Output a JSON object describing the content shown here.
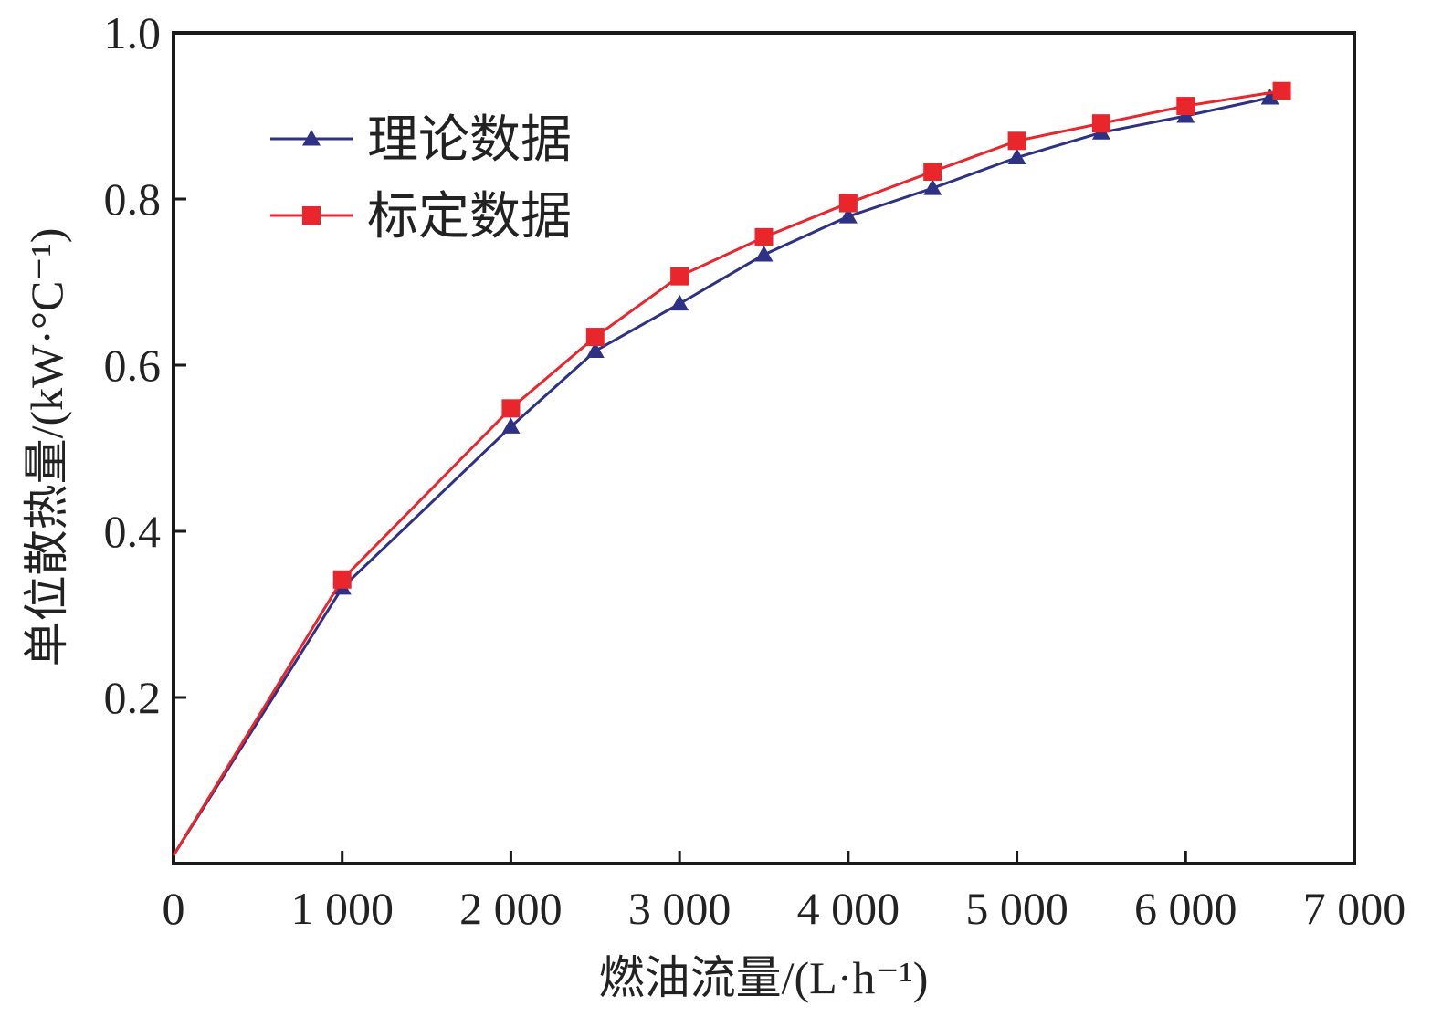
{
  "chart_data": {
    "type": "line",
    "title": "",
    "xlabel": "燃油流量/(L·h⁻¹)",
    "ylabel": "单位散热量/(kW·°C⁻¹)",
    "xlim": [
      0,
      7000
    ],
    "ylim": [
      0,
      1.0
    ],
    "x_ticks": [
      0,
      1000,
      2000,
      3000,
      4000,
      5000,
      6000,
      7000
    ],
    "x_tick_labels": [
      "0",
      "1 000",
      "2 000",
      "3 000",
      "4 000",
      "5 000",
      "6 000",
      "7 000"
    ],
    "y_ticks": [
      0.2,
      0.4,
      0.6,
      0.8,
      1.0
    ],
    "y_tick_labels": [
      "0.2",
      "0.4",
      "0.6",
      "0.8",
      "1.0"
    ],
    "grid": false,
    "legend_position": "top-left",
    "series": [
      {
        "name": "理论数据",
        "color": "#2e3184",
        "marker": "triangle",
        "x": [
          0,
          1000,
          2000,
          2500,
          3000,
          3500,
          4000,
          4500,
          5000,
          5500,
          6000,
          6500
        ],
        "y": [
          0.01,
          0.332,
          0.526,
          0.617,
          0.674,
          0.733,
          0.779,
          0.813,
          0.85,
          0.88,
          0.9,
          0.922
        ]
      },
      {
        "name": "标定数据",
        "color": "#e8262b",
        "marker": "square",
        "x": [
          0,
          1000,
          2000,
          2500,
          3000,
          3500,
          4000,
          4500,
          5000,
          5500,
          6000,
          6570
        ],
        "y": [
          0.01,
          0.342,
          0.548,
          0.634,
          0.707,
          0.754,
          0.795,
          0.833,
          0.87,
          0.891,
          0.912,
          0.93
        ]
      }
    ]
  }
}
